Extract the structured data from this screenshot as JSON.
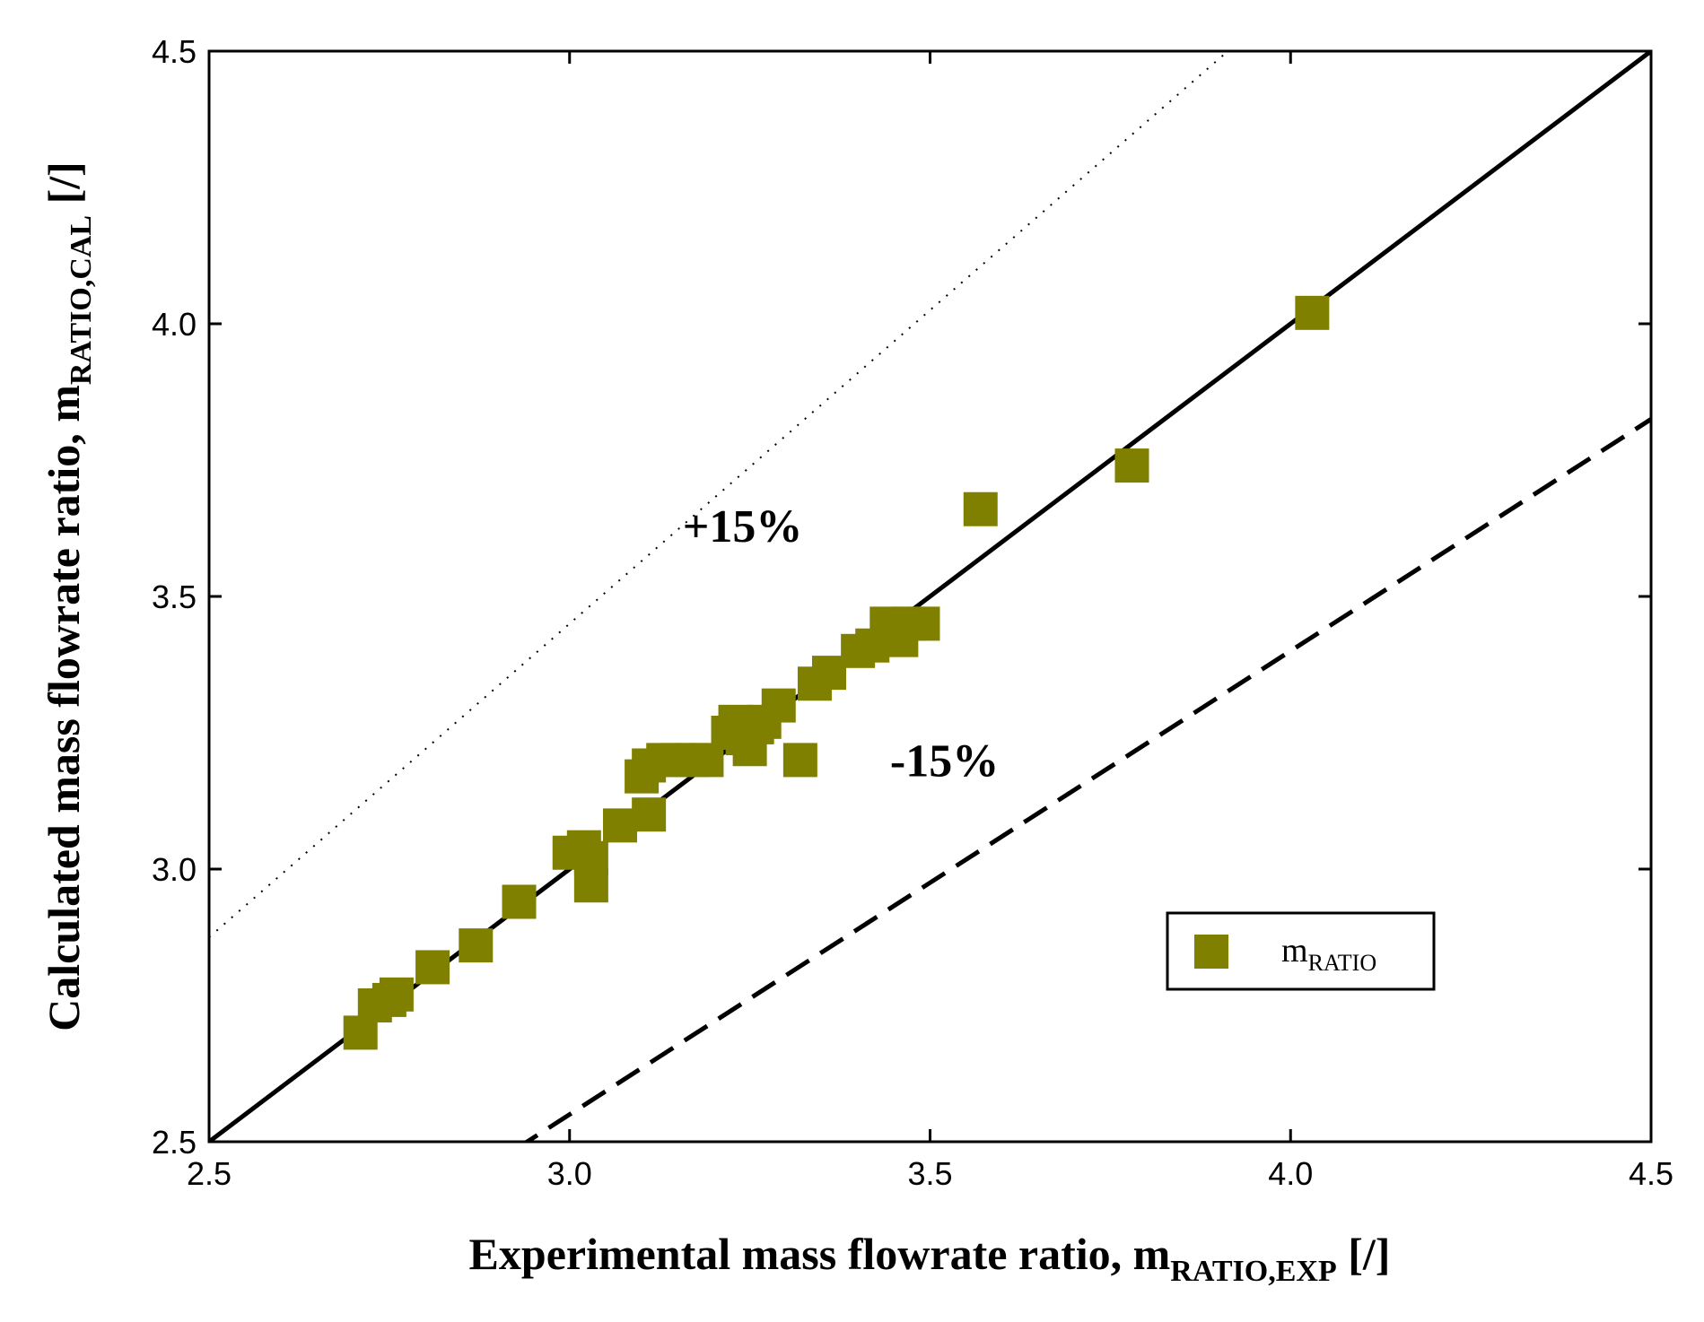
{
  "chart_data": {
    "type": "scatter",
    "xlabel": {
      "prefix": "Experimental mass flowrate ratio, m",
      "subscript": "RATIO,EXP",
      "suffix": " [/]"
    },
    "ylabel": {
      "prefix": "Calculated mass flowrate ratio, m",
      "subscript": "RATIO,CAL",
      "suffix": " [/]"
    },
    "xlim": [
      2.5,
      4.5
    ],
    "ylim": [
      2.5,
      4.5
    ],
    "x_ticks": [
      "2.5",
      "3.0",
      "3.5",
      "4.0",
      "4.5"
    ],
    "y_ticks": [
      "2.5",
      "3.0",
      "3.5",
      "4.0",
      "4.5"
    ],
    "grid": false,
    "legend": {
      "position": "lower-right",
      "entries": [
        {
          "prefix": "m",
          "subscript": "RATIO"
        }
      ]
    },
    "marker_color": "#808000",
    "annotations": [
      {
        "text": "+15%",
        "x": 3.24,
        "y": 3.6
      },
      {
        "text": "-15%",
        "x": 3.52,
        "y": 3.17
      }
    ],
    "reference_lines": [
      {
        "name": "perfect-agreement",
        "style": "solid",
        "slope": 1.0
      },
      {
        "name": "plus-15-percent",
        "style": "dotted",
        "slope": 1.15
      },
      {
        "name": "minus-15-percent",
        "style": "dashed",
        "slope": 0.85
      }
    ],
    "series": [
      {
        "name": "mRATIO",
        "x": [
          2.71,
          2.73,
          2.75,
          2.76,
          2.81,
          2.87,
          2.93,
          3.0,
          3.02,
          3.03,
          3.03,
          3.07,
          3.1,
          3.11,
          3.11,
          3.13,
          3.15,
          3.17,
          3.19,
          3.22,
          3.23,
          3.24,
          3.25,
          3.26,
          3.27,
          3.29,
          3.32,
          3.34,
          3.36,
          3.4,
          3.42,
          3.44,
          3.45,
          3.46,
          3.47,
          3.49,
          3.57,
          3.78,
          4.03
        ],
        "y": [
          2.7,
          2.75,
          2.76,
          2.77,
          2.82,
          2.86,
          2.94,
          3.03,
          3.04,
          3.02,
          2.97,
          3.08,
          3.17,
          3.1,
          3.19,
          3.2,
          3.2,
          3.2,
          3.2,
          3.25,
          3.27,
          3.24,
          3.22,
          3.26,
          3.27,
          3.3,
          3.2,
          3.34,
          3.36,
          3.4,
          3.41,
          3.45,
          3.44,
          3.42,
          3.45,
          3.45,
          3.66,
          3.74,
          4.02
        ]
      }
    ]
  }
}
